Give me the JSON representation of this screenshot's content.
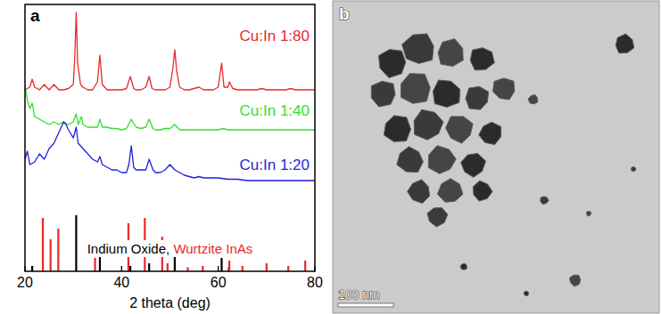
{
  "chart_data": {
    "type": "line",
    "panel_label": "a",
    "x_label": "2 theta (deg)",
    "xlim": [
      20,
      80
    ],
    "xticks": [
      20,
      40,
      60,
      80
    ],
    "ylim": [
      0,
      100
    ],
    "tick_labels": "x",
    "series": [
      {
        "name": "Cu:In 1:80",
        "color": "#e8282a",
        "x": [
          20,
          21,
          21.5,
          22,
          23,
          24,
          24.5,
          25,
          26,
          26.5,
          27,
          28,
          29,
          30,
          30.3,
          30.6,
          30.9,
          31.5,
          32,
          33,
          34,
          35,
          35.5,
          36,
          37,
          38,
          39,
          40,
          41,
          41.8,
          42.5,
          43,
          44,
          45,
          45.7,
          46.3,
          47,
          48,
          49,
          50,
          50.6,
          51,
          51.4,
          52,
          53,
          54,
          55,
          56,
          57,
          58,
          59,
          60,
          60.7,
          61.2,
          62,
          62.3,
          63,
          64,
          65,
          66,
          67,
          68,
          69,
          70,
          71,
          72,
          73,
          74,
          75,
          76,
          77,
          78,
          79,
          80
        ],
        "values": [
          68,
          69,
          72,
          69,
          68,
          70,
          69,
          68,
          70,
          69,
          68,
          68,
          68.5,
          70,
          80,
          97,
          78,
          70,
          69,
          68,
          68,
          71,
          81,
          70,
          68,
          68,
          68,
          68,
          68.5,
          73,
          68.5,
          68,
          68,
          69,
          73,
          68.5,
          68,
          68,
          68,
          69,
          76,
          83,
          75,
          69,
          68,
          68,
          68.5,
          69,
          68,
          68,
          68,
          69,
          78,
          69,
          69,
          71,
          68.5,
          68,
          68,
          68,
          68,
          68,
          68.5,
          68,
          68,
          68,
          68,
          68,
          68.5,
          68,
          68,
          68,
          68,
          68
        ]
      },
      {
        "name": "Cu:In 1:40",
        "color": "#2fe02f",
        "x": [
          20,
          20.5,
          21,
          21.5,
          22,
          23,
          24,
          25,
          26,
          27,
          28,
          29,
          30,
          30.6,
          31,
          31.7,
          32,
          33,
          34,
          35,
          35.5,
          36,
          37,
          38,
          39,
          40,
          41,
          42,
          43,
          44,
          45,
          45.7,
          46.5,
          47,
          48,
          49,
          50,
          51,
          52,
          53,
          54,
          55,
          56,
          57,
          58,
          59,
          60,
          61,
          62,
          64,
          66,
          68,
          70,
          72,
          74,
          76,
          78,
          80
        ],
        "values": [
          70,
          64,
          61,
          63,
          58,
          57,
          56,
          55,
          56,
          55,
          56,
          55,
          56,
          59,
          55,
          58,
          55,
          54,
          54,
          54,
          57,
          54,
          54,
          53.5,
          53.5,
          53,
          53.5,
          57,
          54,
          53.5,
          54,
          57,
          53.5,
          53,
          53,
          53.5,
          53.5,
          55,
          53,
          53,
          53,
          53,
          53,
          53,
          53,
          53,
          53,
          53.5,
          53,
          53,
          53,
          53,
          53,
          53,
          53,
          53,
          53,
          53
        ]
      },
      {
        "name": "Cu:In 1:20",
        "color": "#1f1fdc",
        "x": [
          20,
          20.5,
          21,
          22,
          23,
          24,
          25,
          26,
          27,
          27.5,
          28,
          28.5,
          29,
          30,
          30.6,
          31,
          32,
          33,
          34,
          35,
          35.5,
          36,
          37,
          38,
          39,
          40,
          41,
          41.5,
          42,
          42.5,
          43,
          44,
          45,
          45.7,
          46.5,
          47,
          48,
          49,
          50,
          51,
          52,
          53,
          54,
          55,
          56,
          57,
          58,
          60,
          62,
          64,
          66,
          68,
          70,
          72,
          74,
          76,
          78,
          80
        ],
        "values": [
          42,
          45,
          40,
          41,
          44,
          42,
          46,
          48,
          52,
          54,
          56,
          55,
          53,
          50,
          54,
          48,
          46,
          44,
          42,
          41,
          43,
          40,
          39,
          38,
          38,
          37,
          37,
          40,
          47,
          39,
          38,
          38,
          38,
          42,
          38,
          37,
          37,
          38,
          40,
          38,
          37,
          36,
          35.5,
          35,
          35.5,
          35,
          35,
          35,
          34.5,
          34.5,
          34,
          34,
          34,
          34,
          34,
          34,
          34,
          34
        ]
      },
      {
        "name": "Indium Oxide,",
        "color": "#000000",
        "type": "stick",
        "x": [
          21.5,
          30.6,
          35.5,
          41.8,
          45.7,
          51,
          60.7,
          62.2
        ],
        "values": [
          2,
          21,
          7,
          2,
          3,
          7,
          5,
          1.5
        ]
      },
      {
        "name": "Wurtzite InAs",
        "color": "#e8282a",
        "type": "stick",
        "x": [
          23.7,
          25.3,
          26.9,
          34.5,
          41.4,
          44.8,
          48.4,
          49.5,
          53.7,
          56.8,
          62.3,
          65,
          70,
          74.5,
          78
        ],
        "values": [
          20,
          12,
          16,
          5,
          18,
          20,
          13,
          3,
          1.5,
          2,
          4,
          2,
          3,
          2,
          4
        ]
      }
    ]
  },
  "image_panel": {
    "panel_label": "b",
    "scale_bar_label": "100 nm"
  }
}
